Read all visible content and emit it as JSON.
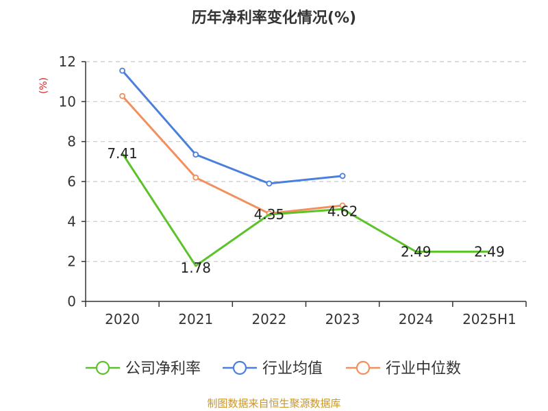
{
  "chart_data": {
    "type": "line",
    "title": "历年净利率变化情况(%)",
    "ylabel": "(%)",
    "categories": [
      "2020",
      "2021",
      "2022",
      "2023",
      "2024",
      "2025H1"
    ],
    "ylim": [
      0,
      12
    ],
    "yticks": [
      0,
      2,
      4,
      6,
      8,
      10,
      12
    ],
    "grid": true,
    "legend_position": "bottom",
    "series": [
      {
        "name": "公司净利率",
        "color": "#5bc22a",
        "values": [
          7.41,
          1.78,
          4.35,
          4.62,
          2.49,
          2.49
        ],
        "labels": [
          "7.41",
          "1.78",
          "4.35",
          "4.62",
          "2.49",
          "2.49"
        ]
      },
      {
        "name": "行业均值",
        "color": "#4a7fdc",
        "values": [
          11.55,
          7.35,
          5.9,
          6.28,
          null,
          null
        ]
      },
      {
        "name": "行业中位数",
        "color": "#f28f5c",
        "values": [
          10.28,
          6.2,
          4.4,
          4.8,
          null,
          null
        ]
      }
    ]
  },
  "ylabel_color": "#e02020",
  "footer": {
    "source": "制图数据来自恒生聚源数据库",
    "color": "#c8962d"
  }
}
